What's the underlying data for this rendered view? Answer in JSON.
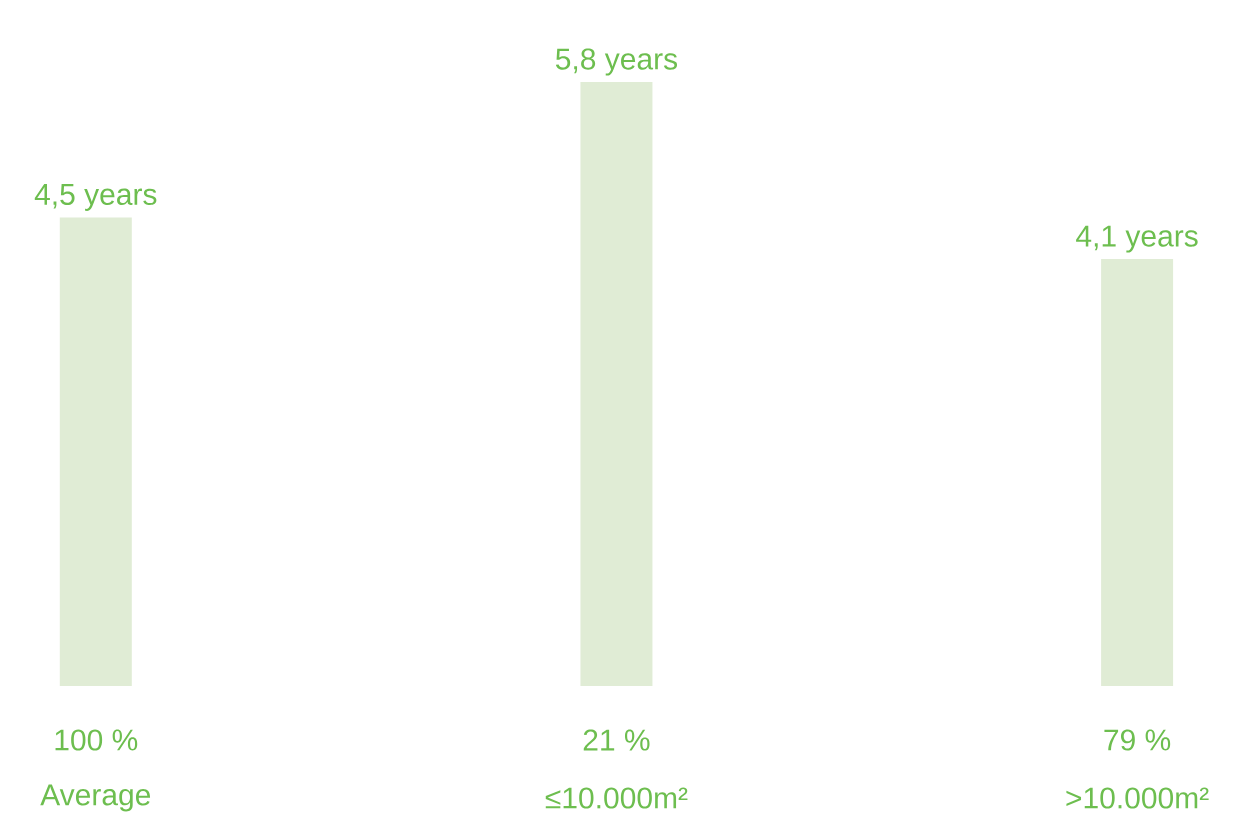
{
  "chart_data": {
    "type": "bar",
    "categories": [
      "Average",
      "≤10.000m²",
      ">10.000m²"
    ],
    "values": [
      4.5,
      5.8,
      4.1
    ],
    "value_labels": [
      "4,5 years",
      "5,8 years",
      "4,1 years"
    ],
    "color": "#e0ecd5",
    "annotations": [
      "100 %",
      "21 %",
      "79 %"
    ],
    "tick_labels": "x"
  }
}
